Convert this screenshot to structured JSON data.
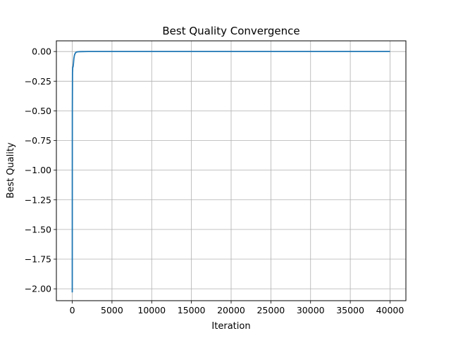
{
  "chart_data": {
    "type": "line",
    "title": "Best Quality Convergence",
    "xlabel": "Iteration",
    "ylabel": "Best Quality",
    "xlim": [
      -2000,
      42000
    ],
    "ylim": [
      -2.1,
      0.09
    ],
    "xticks": [
      0,
      5000,
      10000,
      15000,
      20000,
      25000,
      30000,
      35000,
      40000
    ],
    "xtick_labels": [
      "0",
      "5000",
      "10000",
      "15000",
      "20000",
      "25000",
      "30000",
      "35000",
      "40000"
    ],
    "yticks": [
      0.0,
      -0.25,
      -0.5,
      -0.75,
      -1.0,
      -1.25,
      -1.5,
      -1.75,
      -2.0
    ],
    "ytick_labels": [
      "0.00",
      "−0.25",
      "−0.50",
      "−0.75",
      "−1.00",
      "−1.25",
      "−1.50",
      "−1.75",
      "−2.00"
    ],
    "grid": true,
    "series": [
      {
        "color": "#1f77b4",
        "x": [
          0,
          5,
          10,
          30,
          60,
          100,
          150,
          200,
          250,
          300,
          400,
          500,
          700,
          1000,
          2000,
          5000,
          10000,
          20000,
          30000,
          40000
        ],
        "y": [
          -2.03,
          -1.2,
          -0.5,
          -0.18,
          -0.13,
          -0.13,
          -0.1,
          -0.06,
          -0.04,
          -0.025,
          -0.012,
          -0.005,
          -0.002,
          -0.001,
          0.0,
          0.0,
          0.0,
          0.0,
          0.0,
          0.0
        ]
      }
    ]
  }
}
